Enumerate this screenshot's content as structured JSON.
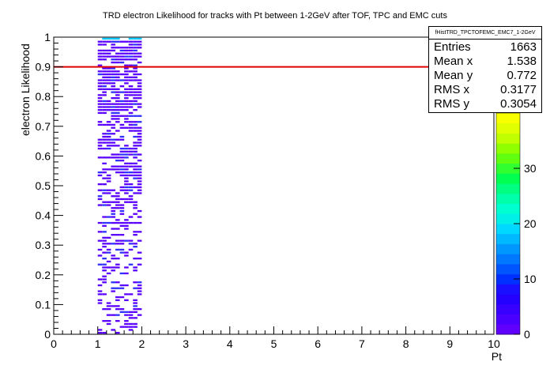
{
  "chart_data": {
    "type": "heatmap",
    "title": "TRD electron Likelihood for tracks with Pt between 1-2GeV after TOF, TPC and EMC cuts",
    "xlabel": "Pt",
    "ylabel": "electron Likelihood",
    "xlim": [
      0,
      10
    ],
    "ylim": [
      0,
      1
    ],
    "x_ticks": [
      "0",
      "1",
      "2",
      "3",
      "4",
      "5",
      "6",
      "7",
      "8",
      "9",
      "10"
    ],
    "y_ticks": [
      "0",
      "0.1",
      "0.2",
      "0.3",
      "0.4",
      "0.5",
      "0.6",
      "0.7",
      "0.8",
      "0.9",
      "1"
    ],
    "colorbar": {
      "range": [
        0,
        40
      ],
      "ticks": [
        "0",
        "10",
        "20",
        "30"
      ]
    },
    "cut_line": {
      "y": 0.9,
      "color": "#e00000"
    },
    "occupied_x_range": [
      1,
      2
    ],
    "colors": {
      "low": "#5a00ff",
      "mid": "#3030ff",
      "top_row": "#00c8ff"
    }
  },
  "stats_box": {
    "name": "fHistTRD_TPCTOFEMC_EMC7_1-2GeV",
    "rows": [
      {
        "key": "Entries",
        "value": "1663"
      },
      {
        "key": "Mean x",
        "value": "1.538"
      },
      {
        "key": "Mean y",
        "value": "0.772"
      },
      {
        "key": "RMS x",
        "value": "0.3177"
      },
      {
        "key": "RMS y",
        "value": "0.3054"
      }
    ]
  }
}
